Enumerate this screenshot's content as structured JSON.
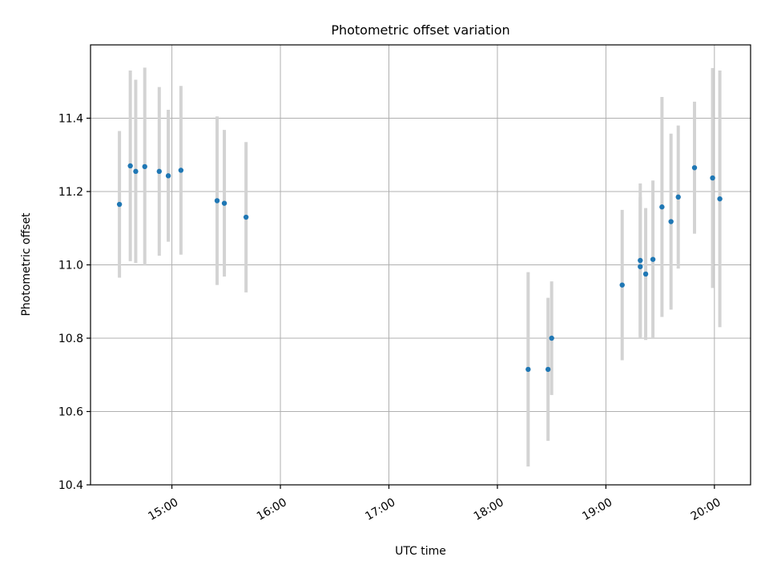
{
  "chart_data": {
    "type": "scatter",
    "title": "Photometric offset variation",
    "xlabel": "UTC time",
    "ylabel": "Photometric offset",
    "xlim": [
      "14:15",
      "20:20"
    ],
    "ylim": [
      10.4,
      11.6
    ],
    "x_ticks": [
      "15:00",
      "16:00",
      "17:00",
      "18:00",
      "19:00",
      "20:00"
    ],
    "y_ticks": [
      10.4,
      10.6,
      10.8,
      11.0,
      11.2,
      11.4
    ],
    "grid": true,
    "colors": {
      "point": "#1f77b4",
      "errorbar": "#d3d3d3",
      "grid": "#b0b0b0"
    },
    "series": [
      {
        "points": [
          {
            "x": "14:31",
            "y": 11.165,
            "err": 0.2
          },
          {
            "x": "14:37",
            "y": 11.27,
            "err": 0.26
          },
          {
            "x": "14:40",
            "y": 11.255,
            "err": 0.25
          },
          {
            "x": "14:45",
            "y": 11.268,
            "err": 0.27
          },
          {
            "x": "14:53",
            "y": 11.255,
            "err": 0.23
          },
          {
            "x": "14:58",
            "y": 11.243,
            "err": 0.18
          },
          {
            "x": "15:05",
            "y": 11.258,
            "err": 0.23
          },
          {
            "x": "15:25",
            "y": 11.175,
            "err": 0.23
          },
          {
            "x": "15:29",
            "y": 11.168,
            "err": 0.2
          },
          {
            "x": "15:41",
            "y": 11.13,
            "err": 0.205
          },
          {
            "x": "18:17",
            "y": 10.715,
            "err": 0.265
          },
          {
            "x": "18:28",
            "y": 10.715,
            "err": 0.195
          },
          {
            "x": "18:30",
            "y": 10.8,
            "err": 0.155
          },
          {
            "x": "19:09",
            "y": 10.945,
            "err": 0.205
          },
          {
            "x": "19:19",
            "y": 11.012,
            "err": 0.21
          },
          {
            "x": "19:19",
            "y": 10.995,
            "err": 0.19
          },
          {
            "x": "19:22",
            "y": 10.975,
            "err": 0.18
          },
          {
            "x": "19:26",
            "y": 11.015,
            "err": 0.215
          },
          {
            "x": "19:31",
            "y": 11.158,
            "err": 0.3
          },
          {
            "x": "19:36",
            "y": 11.118,
            "err": 0.24
          },
          {
            "x": "19:40",
            "y": 11.185,
            "err": 0.195
          },
          {
            "x": "19:49",
            "y": 11.265,
            "err": 0.18
          },
          {
            "x": "19:59",
            "y": 11.237,
            "err": 0.3
          },
          {
            "x": "20:03",
            "y": 11.18,
            "err": 0.35
          }
        ]
      }
    ]
  }
}
